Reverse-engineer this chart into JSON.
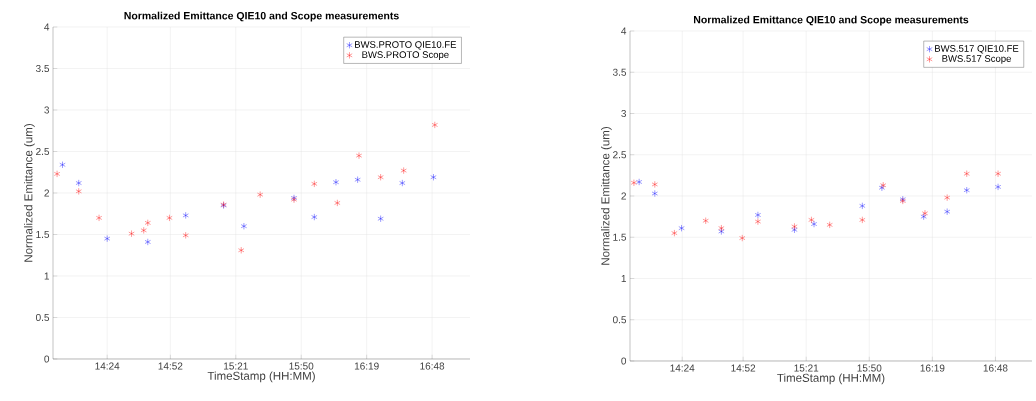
{
  "chart_data": [
    {
      "type": "scatter",
      "title": "Normalized Emittance QIE10 and Scope measurements",
      "xlabel": "TimeStamp (HH:MM)",
      "ylabel": "Normalized Emittance (um)",
      "xlim": [
        14.0,
        17.08
      ],
      "ylim": [
        0,
        4
      ],
      "xticks": [
        {
          "value": 14.4,
          "label": "14:24"
        },
        {
          "value": 14.8667,
          "label": "14:52"
        },
        {
          "value": 15.35,
          "label": "15:21"
        },
        {
          "value": 15.8333,
          "label": "15:50"
        },
        {
          "value": 16.3167,
          "label": "16:19"
        },
        {
          "value": 16.8,
          "label": "16:48"
        }
      ],
      "yticks": [
        0,
        0.5,
        1,
        1.5,
        2,
        2.5,
        3,
        3.5,
        4
      ],
      "grid": true,
      "legend": "top right",
      "marker": "cross",
      "series": [
        {
          "name": "BWS.PROTO QIE10.FE",
          "color": "#0000ff",
          "x": [
            14.07,
            14.19,
            14.4,
            14.7,
            14.98,
            15.26,
            15.41,
            15.78,
            15.93,
            16.09,
            16.25,
            16.42,
            16.58,
            16.81
          ],
          "values": [
            2.34,
            2.12,
            1.45,
            1.41,
            1.73,
            1.85,
            1.6,
            1.94,
            1.71,
            2.13,
            2.16,
            1.69,
            2.12,
            2.19
          ]
        },
        {
          "name": "BWS.PROTO Scope",
          "color": "#ff0000",
          "x": [
            14.03,
            14.19,
            14.34,
            14.58,
            14.67,
            14.7,
            14.86,
            14.98,
            15.26,
            15.39,
            15.53,
            15.78,
            15.93,
            16.1,
            16.26,
            16.42,
            16.59,
            16.82
          ],
          "values": [
            2.23,
            2.02,
            1.7,
            1.51,
            1.55,
            1.64,
            1.7,
            1.49,
            1.86,
            1.31,
            1.98,
            1.92,
            2.11,
            1.88,
            2.45,
            2.19,
            2.27,
            2.82
          ]
        }
      ]
    },
    {
      "type": "scatter",
      "title": "Normalized Emittance QIE10 and Scope measurements",
      "xlabel": "TimeStamp (HH:MM)",
      "ylabel": "Normalized Emittance (um)",
      "xlim": [
        14.0,
        17.08
      ],
      "ylim": [
        0,
        4
      ],
      "xticks": [
        {
          "value": 14.4,
          "label": "14:24"
        },
        {
          "value": 14.8667,
          "label": "14:52"
        },
        {
          "value": 15.35,
          "label": "15:21"
        },
        {
          "value": 15.8333,
          "label": "15:50"
        },
        {
          "value": 16.3167,
          "label": "16:19"
        },
        {
          "value": 16.8,
          "label": "16:48"
        }
      ],
      "yticks": [
        0,
        0.5,
        1,
        1.5,
        2,
        2.5,
        3,
        3.5,
        4
      ],
      "grid": true,
      "legend": "top right",
      "marker": "cross",
      "series": [
        {
          "name": "BWS.517 QIE10.FE",
          "color": "#0000ff",
          "x": [
            14.07,
            14.19,
            14.395,
            14.7,
            14.98,
            15.26,
            15.41,
            15.78,
            15.93,
            16.09,
            16.25,
            16.43,
            16.58,
            16.82
          ],
          "values": [
            2.17,
            2.03,
            1.61,
            1.57,
            1.77,
            1.59,
            1.66,
            1.88,
            2.1,
            1.96,
            1.75,
            1.81,
            2.07,
            2.11
          ]
        },
        {
          "name": "BWS.517 Scope",
          "color": "#ff0000",
          "x": [
            14.03,
            14.19,
            14.34,
            14.58,
            14.7,
            14.86,
            14.98,
            15.26,
            15.39,
            15.53,
            15.78,
            15.94,
            16.09,
            16.26,
            16.43,
            16.58,
            16.82
          ],
          "values": [
            2.16,
            2.14,
            1.55,
            1.7,
            1.61,
            1.49,
            1.69,
            1.63,
            1.71,
            1.65,
            1.71,
            2.13,
            1.94,
            1.79,
            1.98,
            2.27,
            2.27
          ]
        }
      ]
    }
  ]
}
